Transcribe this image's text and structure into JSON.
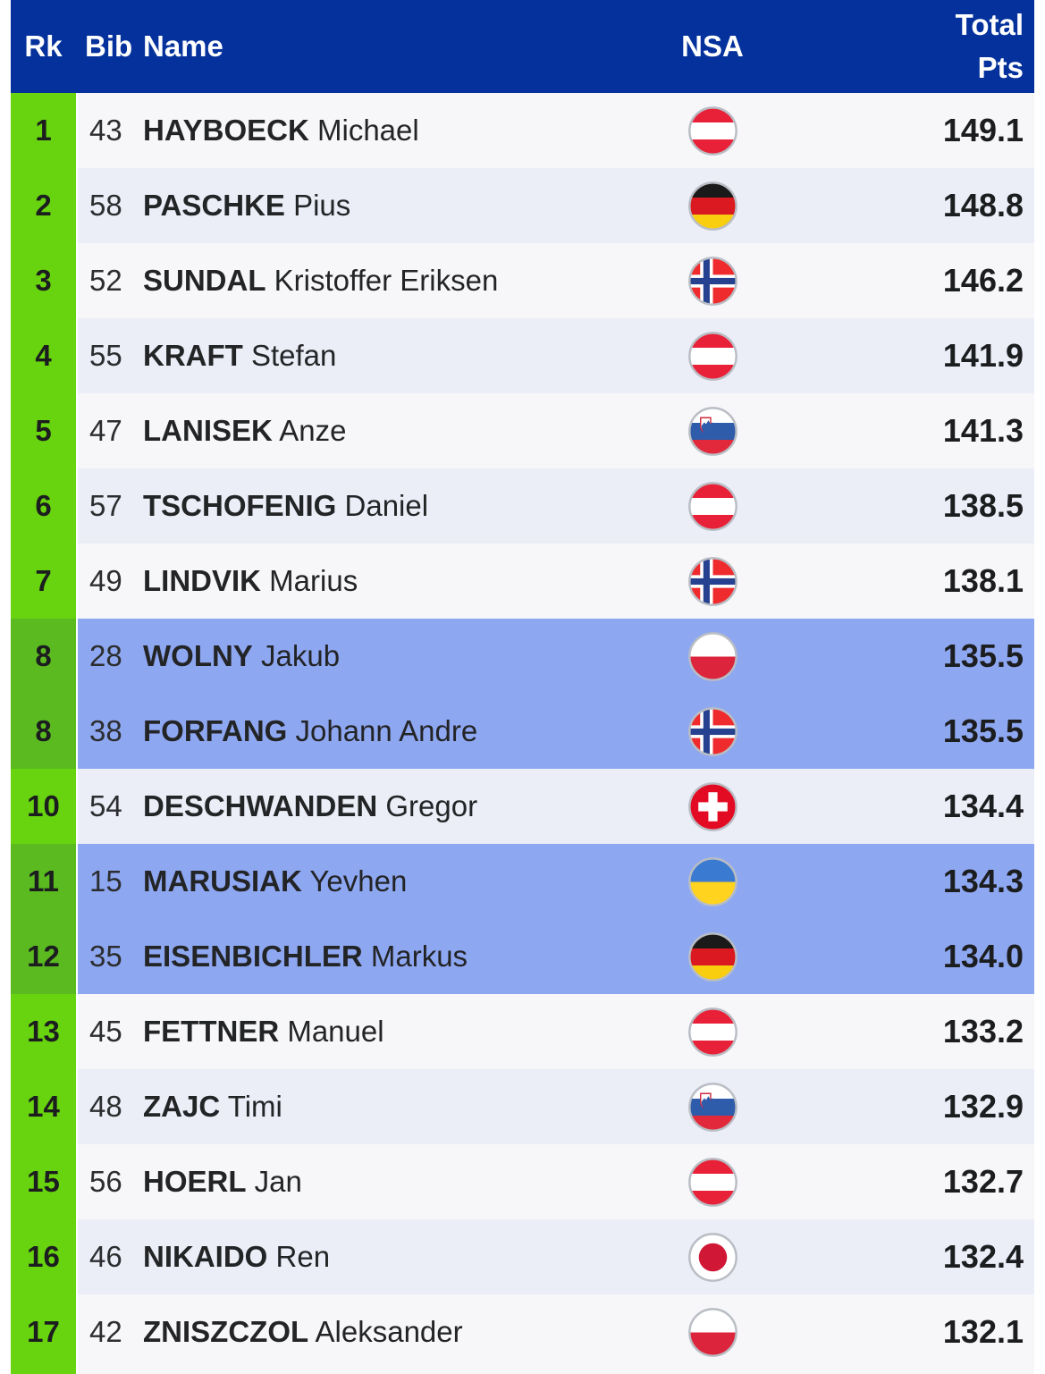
{
  "table": {
    "header": {
      "rank": "Rk",
      "bib": "Bib",
      "name": "Name",
      "nsa": "NSA",
      "total_line1": "Total",
      "total_line2": "Pts"
    },
    "rows": [
      {
        "rank": "1",
        "bib": "43",
        "family_name": "HAYBOECK",
        "given_name": "Michael",
        "nsa": "AUT",
        "points": "149.1",
        "highlighted": false
      },
      {
        "rank": "2",
        "bib": "58",
        "family_name": "PASCHKE",
        "given_name": "Pius",
        "nsa": "GER",
        "points": "148.8",
        "highlighted": false
      },
      {
        "rank": "3",
        "bib": "52",
        "family_name": "SUNDAL",
        "given_name": "Kristoffer Eriksen",
        "nsa": "NOR",
        "points": "146.2",
        "highlighted": false
      },
      {
        "rank": "4",
        "bib": "55",
        "family_name": "KRAFT",
        "given_name": "Stefan",
        "nsa": "AUT",
        "points": "141.9",
        "highlighted": false
      },
      {
        "rank": "5",
        "bib": "47",
        "family_name": "LANISEK",
        "given_name": "Anze",
        "nsa": "SLO",
        "points": "141.3",
        "highlighted": false
      },
      {
        "rank": "6",
        "bib": "57",
        "family_name": "TSCHOFENIG",
        "given_name": "Daniel",
        "nsa": "AUT",
        "points": "138.5",
        "highlighted": false
      },
      {
        "rank": "7",
        "bib": "49",
        "family_name": "LINDVIK",
        "given_name": "Marius",
        "nsa": "NOR",
        "points": "138.1",
        "highlighted": false
      },
      {
        "rank": "8",
        "bib": "28",
        "family_name": "WOLNY",
        "given_name": "Jakub",
        "nsa": "POL",
        "points": "135.5",
        "highlighted": true
      },
      {
        "rank": "8",
        "bib": "38",
        "family_name": "FORFANG",
        "given_name": "Johann Andre",
        "nsa": "NOR",
        "points": "135.5",
        "highlighted": true
      },
      {
        "rank": "10",
        "bib": "54",
        "family_name": "DESCHWANDEN",
        "given_name": "Gregor",
        "nsa": "SUI",
        "points": "134.4",
        "highlighted": false
      },
      {
        "rank": "11",
        "bib": "15",
        "family_name": "MARUSIAK",
        "given_name": "Yevhen",
        "nsa": "UKR",
        "points": "134.3",
        "highlighted": true
      },
      {
        "rank": "12",
        "bib": "35",
        "family_name": "EISENBICHLER",
        "given_name": "Markus",
        "nsa": "GER",
        "points": "134.0",
        "highlighted": true
      },
      {
        "rank": "13",
        "bib": "45",
        "family_name": "FETTNER",
        "given_name": "Manuel",
        "nsa": "AUT",
        "points": "133.2",
        "highlighted": false
      },
      {
        "rank": "14",
        "bib": "48",
        "family_name": "ZAJC",
        "given_name": "Timi",
        "nsa": "SLO",
        "points": "132.9",
        "highlighted": false
      },
      {
        "rank": "15",
        "bib": "56",
        "family_name": "HOERL",
        "given_name": "Jan",
        "nsa": "AUT",
        "points": "132.7",
        "highlighted": false
      },
      {
        "rank": "16",
        "bib": "46",
        "family_name": "NIKAIDO",
        "given_name": "Ren",
        "nsa": "JPN",
        "points": "132.4",
        "highlighted": false
      },
      {
        "rank": "17",
        "bib": "42",
        "family_name": "ZNISZCZOL",
        "given_name": "Aleksander",
        "nsa": "POL",
        "points": "132.1",
        "highlighted": false
      }
    ]
  },
  "colors": {
    "header_bg": "#04319c",
    "header_text": "#ffffff",
    "rank_green": "#68d30f",
    "rank_green_highlight": "#5aba20",
    "row_odd": "#f7f7fa",
    "row_even": "#ebedf7",
    "row_highlight": "#8ea7f1",
    "flag_ring": "#b9bdc4"
  }
}
